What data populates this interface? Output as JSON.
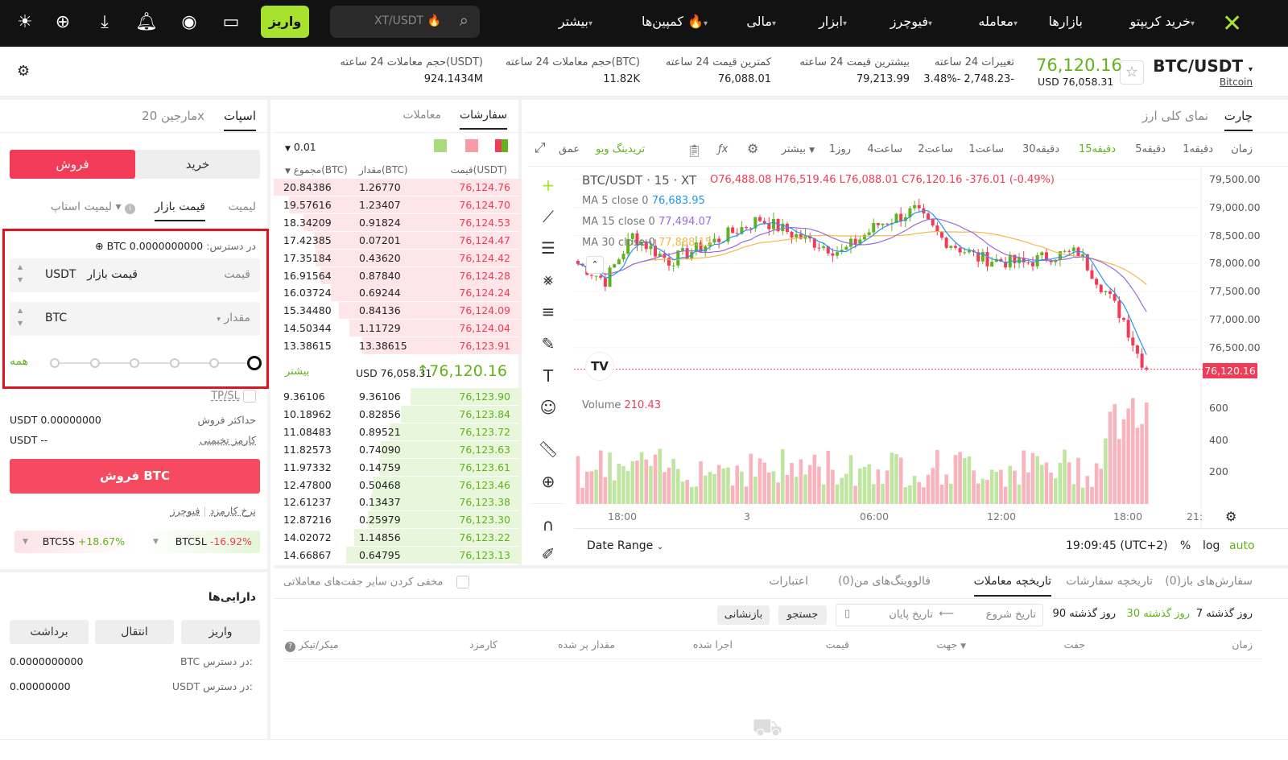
{
  "nav": {
    "logo": "XT",
    "items": [
      {
        "label": "خرید کریپتو",
        "caret": true
      },
      {
        "label": "بازارها",
        "caret": false
      },
      {
        "label": "معامله",
        "caret": true
      },
      {
        "label": "فیوچرز",
        "caret": true
      },
      {
        "label": "ابزار",
        "caret": true
      },
      {
        "label": "مالی",
        "caret": true
      },
      {
        "label": "کمپین‌ها 🔥",
        "caret": true
      },
      {
        "label": "بیشتر",
        "caret": true
      }
    ],
    "search_placeholder": "XT/USDT 🔥",
    "deposit": "واریز",
    "icons": [
      "wallet-icon",
      "user-icon",
      "bell-icon",
      "download-icon",
      "globe-icon",
      "sun-icon"
    ]
  },
  "ticker": {
    "pair": "BTC/USDT",
    "coin": "Bitcoin",
    "price": "76,120.16",
    "price_usd": "USD 76,058.31",
    "stats": [
      {
        "label": "تغییرات 24 ساعته",
        "value": "3.48%- 2,748.23-",
        "color": "#f23b56"
      },
      {
        "label": "بیشترین قیمت 24 ساعته",
        "value": "79,213.99"
      },
      {
        "label": "کمترین قیمت 24 ساعته",
        "value": "76,088.01"
      },
      {
        "label": "حجم معاملات 24 ساعته(BTC)",
        "value": "11.82K"
      },
      {
        "label": "حجم معاملات 24 ساعته(USDT)",
        "value": "924.1434M"
      }
    ]
  },
  "trade": {
    "tabs": [
      "اسپات",
      "مارجین 20x"
    ],
    "buy": "خرید",
    "sell": "فروش",
    "order_types": [
      "لیمیت",
      "قیمت بازار",
      "لیمیت استاپ"
    ],
    "available_label": "در دسترس:",
    "available_value": "0.0000000000 BTC",
    "price_label": "قیمت",
    "price_value": "قیمت بازار",
    "price_unit": "USDT",
    "amount_label": "مقدار",
    "amount_unit": "BTC",
    "all": "همه",
    "slider_percent": 0,
    "tpsl": "TP/SL",
    "max_sell_label": "حداکثر فروش",
    "max_sell_value": "USDT 0.00000000",
    "fee_label": "کارمز تخیمنی",
    "fee_value": "USDT --",
    "submit": "فروش BTC",
    "fee_rate": "نرخ کارمزد",
    "futures": "فیوچرز",
    "etf": [
      {
        "name": "BTC5L",
        "change": "-16.92%",
        "color": "#f23b56"
      },
      {
        "name": "BTC5S",
        "change": "+18.67%",
        "color": "#62b21a"
      }
    ]
  },
  "assets": {
    "title": "دارایی‌ها",
    "buttons": [
      "واریز",
      "انتقال",
      "برداشت"
    ],
    "rows": [
      {
        "label": "BTC در دسترس:",
        "value": "0.0000000000"
      },
      {
        "label": "USDT در دسترس:",
        "value": "0.00000000"
      }
    ]
  },
  "orderbook": {
    "tabs": [
      "سفارشات",
      "معاملات"
    ],
    "precision": "0.01",
    "headers": [
      "قیمت(USDT)",
      "مقدار(BTC)",
      "مجموع(BTC)"
    ],
    "asks": [
      [
        "76,124.76",
        "1.26770",
        "20.84386"
      ],
      [
        "76,124.70",
        "1.23407",
        "19.57616"
      ],
      [
        "76,124.53",
        "0.91824",
        "18.34209"
      ],
      [
        "76,124.47",
        "0.07201",
        "17.42385"
      ],
      [
        "76,124.42",
        "0.43620",
        "17.35184"
      ],
      [
        "76,124.28",
        "0.87840",
        "16.91564"
      ],
      [
        "76,124.24",
        "0.69244",
        "16.03724"
      ],
      [
        "76,124.09",
        "0.84136",
        "15.34480"
      ],
      [
        "76,124.04",
        "1.11729",
        "14.50344"
      ],
      [
        "76,123.91",
        "13.38615",
        "13.38615"
      ]
    ],
    "mid_price": "↑76,120.16",
    "mid_usd": "USD 76,058.31",
    "more": "بیشتر",
    "bids": [
      [
        "76,123.90",
        "9.36106",
        "9.36106"
      ],
      [
        "76,123.84",
        "0.82856",
        "10.18962"
      ],
      [
        "76,123.72",
        "0.89521",
        "11.08483"
      ],
      [
        "76,123.63",
        "0.74090",
        "11.82573"
      ],
      [
        "76,123.61",
        "0.14759",
        "11.97332"
      ],
      [
        "76,123.46",
        "0.50468",
        "12.47800"
      ],
      [
        "76,123.38",
        "0.13437",
        "12.61237"
      ],
      [
        "76,123.30",
        "0.25979",
        "12.87216"
      ],
      [
        "76,123.22",
        "1.14856",
        "14.02072"
      ],
      [
        "76,123.13",
        "0.64795",
        "14.66867"
      ]
    ]
  },
  "chart": {
    "tabs": [
      "چارت",
      "نمای کلی ارز"
    ],
    "timeframes": [
      "زمان",
      "1دقیقه",
      "5دقیقه",
      "15دقیقه",
      "30دقیقه",
      "1ساعت",
      "2ساعت",
      "4ساعت",
      "1روز",
      "بیشتر"
    ],
    "active_tf": "15دقیقه",
    "tradingview": "تریدینگ ویو",
    "depth": "عمق",
    "legend": {
      "symbol": "BTC/USDT · 15 · XT",
      "ohlc": "O76,488.08 H76,519.46 L76,088.01 C76,120.16 -376.01 (-0.49%)",
      "ma5_label": "MA 5 close 0",
      "ma5": "76,683.95",
      "ma15_label": "MA 15 close 0",
      "ma15": "77,494.07",
      "ma30_label": "MA 30 close 0",
      "ma30": "77,888.15",
      "volume_label": "Volume",
      "volume": "210.43"
    },
    "price_ticks": [
      "79,500.00",
      "79,000.00",
      "78,500.00",
      "78,000.00",
      "77,500.00",
      "77,000.00",
      "76,500.00"
    ],
    "last_price": "76,120.16",
    "vol_ticks": [
      "600",
      "400",
      "200"
    ],
    "time_ticks": [
      "18:00",
      "3",
      "06:00",
      "12:00",
      "18:00",
      "21:"
    ],
    "date_range": "Date Range",
    "clock": "19:09:45 (UTC+2)",
    "percent": "%",
    "log": "log",
    "auto": "auto",
    "colors": {
      "up": "#62b21a",
      "down": "#f23b56",
      "ma5": "#2196f3",
      "ma15": "#9c6ade",
      "ma30": "#f7b84b"
    }
  },
  "history": {
    "tabs": [
      "سفارش‌های باز(0)",
      "تاریخچه سفارشات",
      "تاریخچه معاملات",
      "فالووینگ‌های من(0)",
      "اعتبارات"
    ],
    "active": 2,
    "hide_others": "مخفی کردن سایر جفت‌های معاملاتی",
    "ranges": [
      "7 روز گذشته",
      "30 روز گذشته",
      "90 روز گذشته"
    ],
    "start": "تاریخ شروع",
    "end": "تاریخ پایان",
    "search": "جستجو",
    "reset": "بازنشانی",
    "columns": [
      "زمان",
      "جفت",
      "جهت",
      "قیمت",
      "اجرا شده",
      "مقدار پر شده",
      "کارمزد",
      "میکر/تیکر"
    ]
  }
}
